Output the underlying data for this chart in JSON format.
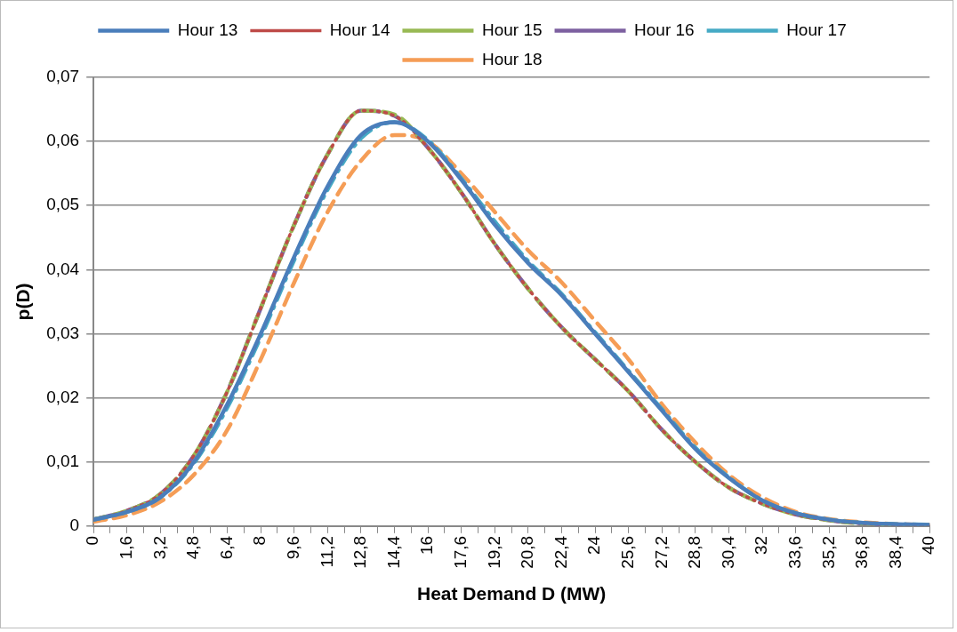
{
  "chart_data": {
    "type": "line",
    "xlabel": "Heat Demand D (MW)",
    "ylabel": "p(D)",
    "x": [
      0,
      1.6,
      3.2,
      4.8,
      6.4,
      8,
      9.6,
      11.2,
      12.8,
      14.4,
      16,
      17.6,
      19.2,
      20.8,
      22.4,
      24,
      25.6,
      27.2,
      28.8,
      30.4,
      32,
      33.6,
      35.2,
      36.8,
      38.4,
      40
    ],
    "series": [
      {
        "name": "Hour 13",
        "color": "#4a7ebb",
        "line_style": "solid",
        "values": [
          0.001,
          0.0022,
          0.0045,
          0.01,
          0.019,
          0.03,
          0.042,
          0.053,
          0.061,
          0.063,
          0.06,
          0.054,
          0.047,
          0.041,
          0.036,
          0.03,
          0.024,
          0.018,
          0.012,
          0.0075,
          0.004,
          0.002,
          0.001,
          0.0005,
          0.0003,
          0.0002
        ]
      },
      {
        "name": "Hour 14",
        "color": "#be4b48",
        "line_style": "dotted",
        "values": [
          0.001,
          0.0024,
          0.005,
          0.011,
          0.021,
          0.034,
          0.047,
          0.058,
          0.0648,
          0.064,
          0.059,
          0.052,
          0.044,
          0.037,
          0.031,
          0.026,
          0.021,
          0.015,
          0.01,
          0.006,
          0.0035,
          0.0018,
          0.0009,
          0.0004,
          0.0002,
          0.0001
        ]
      },
      {
        "name": "Hour 15",
        "color": "#98b954",
        "line_style": "dashed",
        "values": [
          0.001,
          0.0024,
          0.005,
          0.011,
          0.021,
          0.034,
          0.047,
          0.058,
          0.0648,
          0.0642,
          0.059,
          0.052,
          0.044,
          0.037,
          0.031,
          0.026,
          0.021,
          0.015,
          0.01,
          0.006,
          0.0035,
          0.0018,
          0.0009,
          0.0004,
          0.0002,
          0.0001
        ]
      },
      {
        "name": "Hour 16",
        "color": "#7d60a0",
        "line_style": "dashed",
        "values": [
          0.001,
          0.0024,
          0.005,
          0.011,
          0.021,
          0.034,
          0.047,
          0.058,
          0.0648,
          0.064,
          0.059,
          0.052,
          0.044,
          0.037,
          0.031,
          0.026,
          0.021,
          0.015,
          0.01,
          0.006,
          0.0035,
          0.0018,
          0.0009,
          0.0004,
          0.0002,
          0.0001
        ]
      },
      {
        "name": "Hour 17",
        "color": "#46aac5",
        "line_style": "dashed",
        "values": [
          0.001,
          0.0022,
          0.0045,
          0.0098,
          0.0185,
          0.0295,
          0.0415,
          0.0525,
          0.0605,
          0.063,
          0.0602,
          0.0542,
          0.0475,
          0.0413,
          0.0362,
          0.0302,
          0.0242,
          0.0182,
          0.0122,
          0.0076,
          0.004,
          0.002,
          0.001,
          0.0005,
          0.0003,
          0.0002
        ]
      },
      {
        "name": "Hour 18",
        "color": "#f59d56",
        "line_style": "dashed",
        "values": [
          0.0007,
          0.0017,
          0.0038,
          0.008,
          0.015,
          0.026,
          0.038,
          0.049,
          0.057,
          0.061,
          0.06,
          0.055,
          0.049,
          0.043,
          0.038,
          0.032,
          0.026,
          0.019,
          0.013,
          0.008,
          0.0045,
          0.0022,
          0.0011,
          0.0006,
          0.0003,
          0.0002
        ]
      }
    ],
    "xlim": [
      0,
      40
    ],
    "xticks": [
      0,
      {
        "value": 0.8,
        "label": null
      },
      {
        "value": 1.6,
        "label": "1,6"
      },
      {
        "value": 2.4,
        "label": null
      },
      {
        "value": 3.2,
        "label": "3,2"
      },
      {
        "value": 4,
        "label": null
      },
      {
        "value": 4.8,
        "label": "4,8"
      },
      {
        "value": 5.6,
        "label": null
      },
      {
        "value": 6.4,
        "label": "6,4"
      },
      {
        "value": 7.2,
        "label": null
      },
      8,
      {
        "value": 8.8,
        "label": null
      },
      {
        "value": 9.6,
        "label": "9,6"
      },
      {
        "value": 10.4,
        "label": null
      },
      {
        "value": 11.2,
        "label": "11,2"
      },
      {
        "value": 12,
        "label": null
      },
      {
        "value": 12.8,
        "label": "12,8"
      },
      {
        "value": 13.6,
        "label": null
      },
      {
        "value": 14.4,
        "label": "14,4"
      },
      {
        "value": 15.2,
        "label": null
      },
      16,
      {
        "value": 16.8,
        "label": null
      },
      {
        "value": 17.6,
        "label": "17,6"
      },
      {
        "value": 18.4,
        "label": null
      },
      {
        "value": 19.2,
        "label": "19,2"
      },
      {
        "value": 20,
        "label": null
      },
      {
        "value": 20.8,
        "label": "20,8"
      },
      {
        "value": 21.6,
        "label": null
      },
      {
        "value": 22.4,
        "label": "22,4"
      },
      {
        "value": 23.2,
        "label": null
      },
      24,
      {
        "value": 24.8,
        "label": null
      },
      {
        "value": 25.6,
        "label": "25,6"
      },
      {
        "value": 26.4,
        "label": null
      },
      {
        "value": 27.2,
        "label": "27,2"
      },
      {
        "value": 28,
        "label": null
      },
      {
        "value": 28.8,
        "label": "28,8"
      },
      {
        "value": 29.6,
        "label": null
      },
      {
        "value": 30.4,
        "label": "30,4"
      },
      {
        "value": 31.2,
        "label": null
      },
      32,
      {
        "value": 32.8,
        "label": null
      },
      {
        "value": 33.6,
        "label": "33,6"
      },
      {
        "value": 34.4,
        "label": null
      },
      {
        "value": 35.2,
        "label": "35,2"
      },
      {
        "value": 36,
        "label": null
      },
      {
        "value": 36.8,
        "label": "36,8"
      },
      {
        "value": 37.6,
        "label": null
      },
      {
        "value": 38.4,
        "label": "38,4"
      },
      {
        "value": 39.2,
        "label": null
      },
      40
    ],
    "ylim": [
      0,
      0.07
    ],
    "yticks": [
      0,
      {
        "value": 0.01,
        "label": "0,01"
      },
      {
        "value": 0.02,
        "label": "0,02"
      },
      {
        "value": 0.03,
        "label": "0,03"
      },
      {
        "value": 0.04,
        "label": "0,04"
      },
      {
        "value": 0.05,
        "label": "0,05"
      },
      {
        "value": 0.06,
        "label": "0,06"
      },
      {
        "value": 0.07,
        "label": "0,07"
      }
    ],
    "grid": "y",
    "legend": "top",
    "marker": "none"
  }
}
